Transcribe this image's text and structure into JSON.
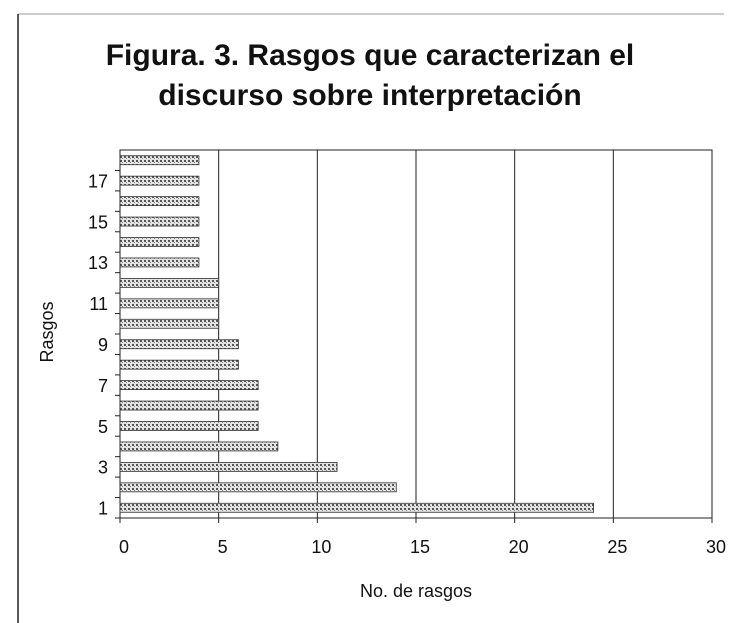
{
  "chart_data": {
    "type": "bar",
    "orientation": "horizontal",
    "title": "Figura. 3. Rasgos que caracterizan el discurso sobre interpretación",
    "xlabel": "No. de rasgos",
    "ylabel": "Rasgos",
    "categories": [
      1,
      null,
      3,
      null,
      5,
      null,
      7,
      null,
      9,
      null,
      11,
      null,
      13,
      null,
      15,
      null,
      17,
      null
    ],
    "values": [
      24,
      14,
      11,
      8,
      7,
      7,
      7,
      6,
      6,
      5,
      5,
      5,
      4,
      4,
      4,
      4,
      4,
      4
    ],
    "color": "#b0b0b0",
    "xlim": [
      0,
      30
    ],
    "xticks": [
      0,
      5,
      10,
      15,
      20,
      25,
      30
    ],
    "grid": true
  }
}
